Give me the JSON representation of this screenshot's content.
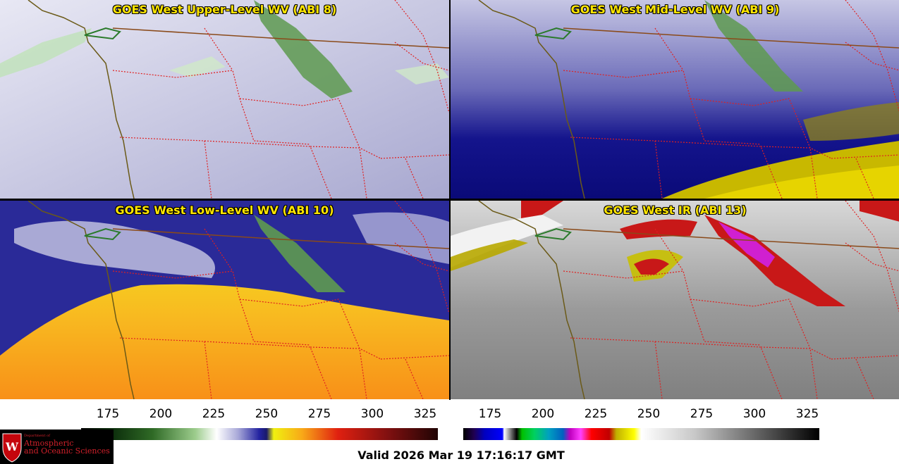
{
  "panels": [
    {
      "id": "p1",
      "title": "GOES West Upper-Level WV (ABI 8)"
    },
    {
      "id": "p2",
      "title": "GOES West Mid-Level WV (ABI 9)"
    },
    {
      "id": "p3",
      "title": "GOES West Low-Level WV (ABI 10)"
    },
    {
      "id": "p4",
      "title": "GOES West IR (ABI 13)"
    }
  ],
  "colorbars": {
    "wv": {
      "ticks": [
        "175",
        "200",
        "225",
        "250",
        "275",
        "300",
        "325"
      ]
    },
    "ir": {
      "ticks": [
        "175",
        "200",
        "225",
        "250",
        "275",
        "300",
        "325"
      ]
    }
  },
  "logo": {
    "line_small": "Department of",
    "line1": "Atmospheric",
    "line2": "and Oceanic Sciences",
    "emblem": "W"
  },
  "valid_time": "Valid 2026 Mar 19 17:16:17 GMT",
  "colors": {
    "title_text": "#ffe600",
    "state_border": "#e02020",
    "coastline": "#6b5a18",
    "intl_border": "#8a4a1a"
  }
}
